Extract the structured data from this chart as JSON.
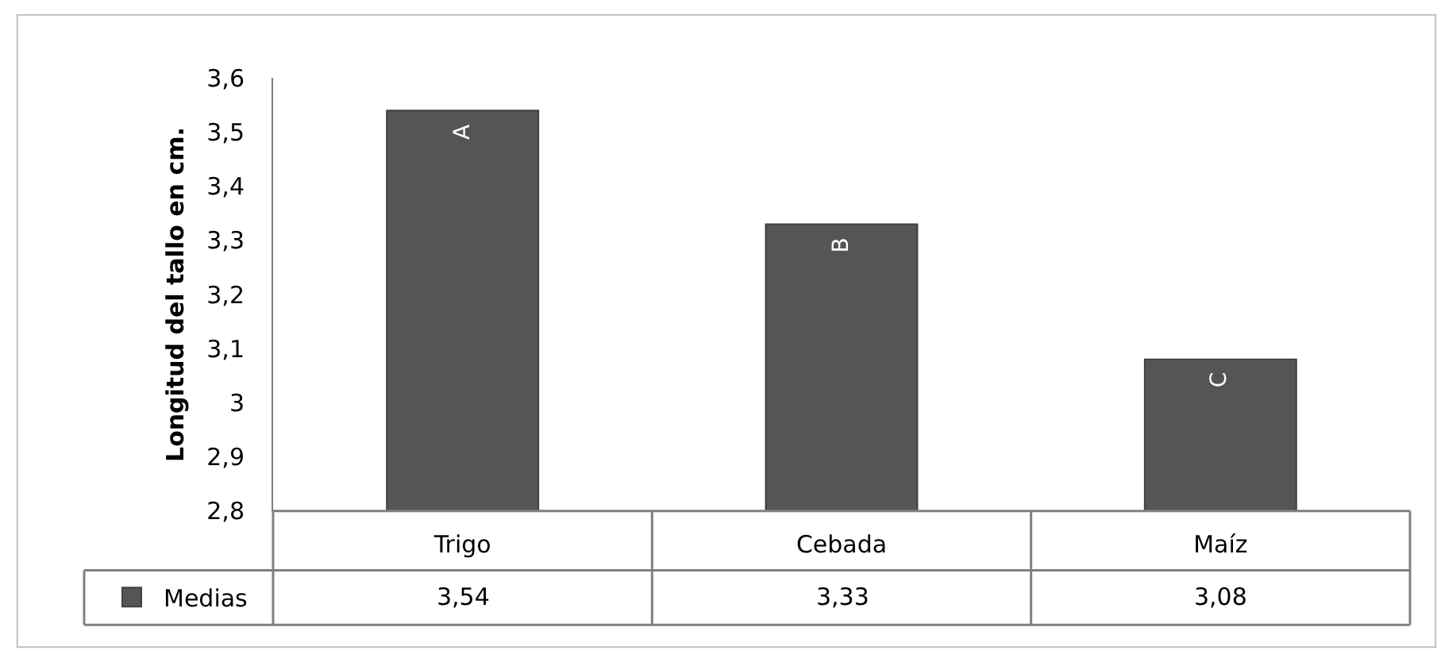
{
  "chart_data": {
    "type": "bar",
    "ylabel": "Longitud del tallo en cm.",
    "categories": [
      "Trigo",
      "Cebada",
      "Maíz"
    ],
    "series": [
      {
        "name": "Medias",
        "color": "#555555",
        "values": [
          3.54,
          3.33,
          3.08
        ],
        "value_labels": [
          "3,54",
          "3,33",
          "3,08"
        ]
      }
    ],
    "ylim": [
      2.8,
      3.6
    ],
    "yticks": [
      {
        "value": 2.8,
        "label": "2,8"
      },
      {
        "value": 2.9,
        "label": "2,9"
      },
      3,
      {
        "value": 3.1,
        "label": "3,1"
      },
      {
        "value": 3.2,
        "label": "3,2"
      },
      {
        "value": 3.3,
        "label": "3,3"
      },
      {
        "value": 3.4,
        "label": "3,4"
      },
      {
        "value": 3.5,
        "label": "3,5"
      },
      {
        "value": 3.6,
        "label": "3,6"
      }
    ],
    "annotations": [
      {
        "text": "A",
        "x": "Trigo",
        "y": 3.54
      },
      {
        "text": "B",
        "x": "Cebada",
        "y": 3.33
      },
      {
        "text": "C",
        "x": "Maíz",
        "y": 3.08
      }
    ],
    "legend": "bottom left"
  }
}
